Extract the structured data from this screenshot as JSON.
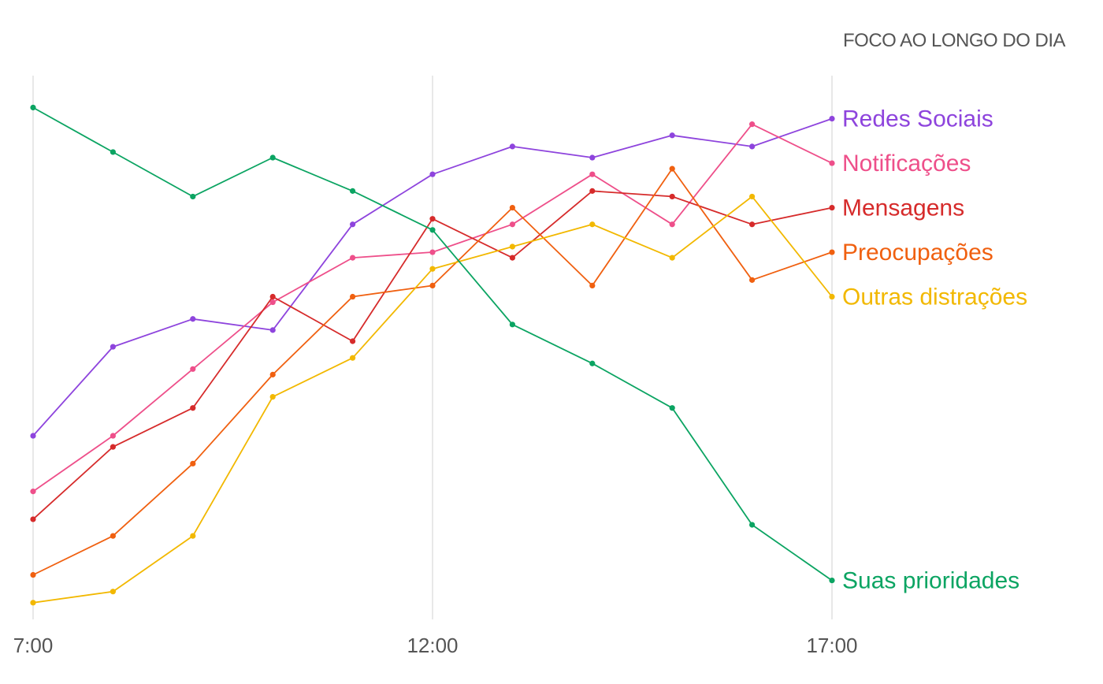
{
  "chart_data": {
    "type": "line",
    "title": "FOCO AO LONGO DO DIA",
    "x_tick_labels": [
      "7:00",
      "12:00",
      "17:00"
    ],
    "x_tick_positions": [
      0,
      5,
      10
    ],
    "x": [
      0,
      1,
      2,
      3,
      4,
      5,
      6,
      7,
      8,
      9,
      10
    ],
    "ylim": [
      0,
      100
    ],
    "grid": "vertical lines at 7:00, 12:00, 17:00",
    "legend": "inline labels at line ends (right)",
    "series": [
      {
        "name": "Redes Sociais",
        "color": "#8e44dd",
        "values": [
          33,
          49,
          54,
          52,
          71,
          80,
          85,
          83,
          87,
          85,
          90
        ]
      },
      {
        "name": "Notificações",
        "color": "#ee4f8a",
        "values": [
          23,
          33,
          45,
          57,
          65,
          66,
          71,
          80,
          71,
          89,
          82
        ]
      },
      {
        "name": "Mensagens",
        "color": "#d62b2b",
        "values": [
          18,
          31,
          38,
          58,
          50,
          72,
          65,
          77,
          76,
          71,
          74
        ]
      },
      {
        "name": "Preocupações",
        "color": "#f06010",
        "values": [
          8,
          15,
          28,
          44,
          58,
          60,
          74,
          60,
          81,
          61,
          66
        ]
      },
      {
        "name": "Outras distrações",
        "color": "#f2b800",
        "values": [
          3,
          5,
          15,
          40,
          47,
          63,
          67,
          71,
          65,
          76,
          58
        ]
      },
      {
        "name": "Suas prioridades",
        "color": "#0ba462",
        "values": [
          92,
          84,
          76,
          83,
          77,
          70,
          53,
          46,
          38,
          17,
          7
        ]
      }
    ]
  }
}
